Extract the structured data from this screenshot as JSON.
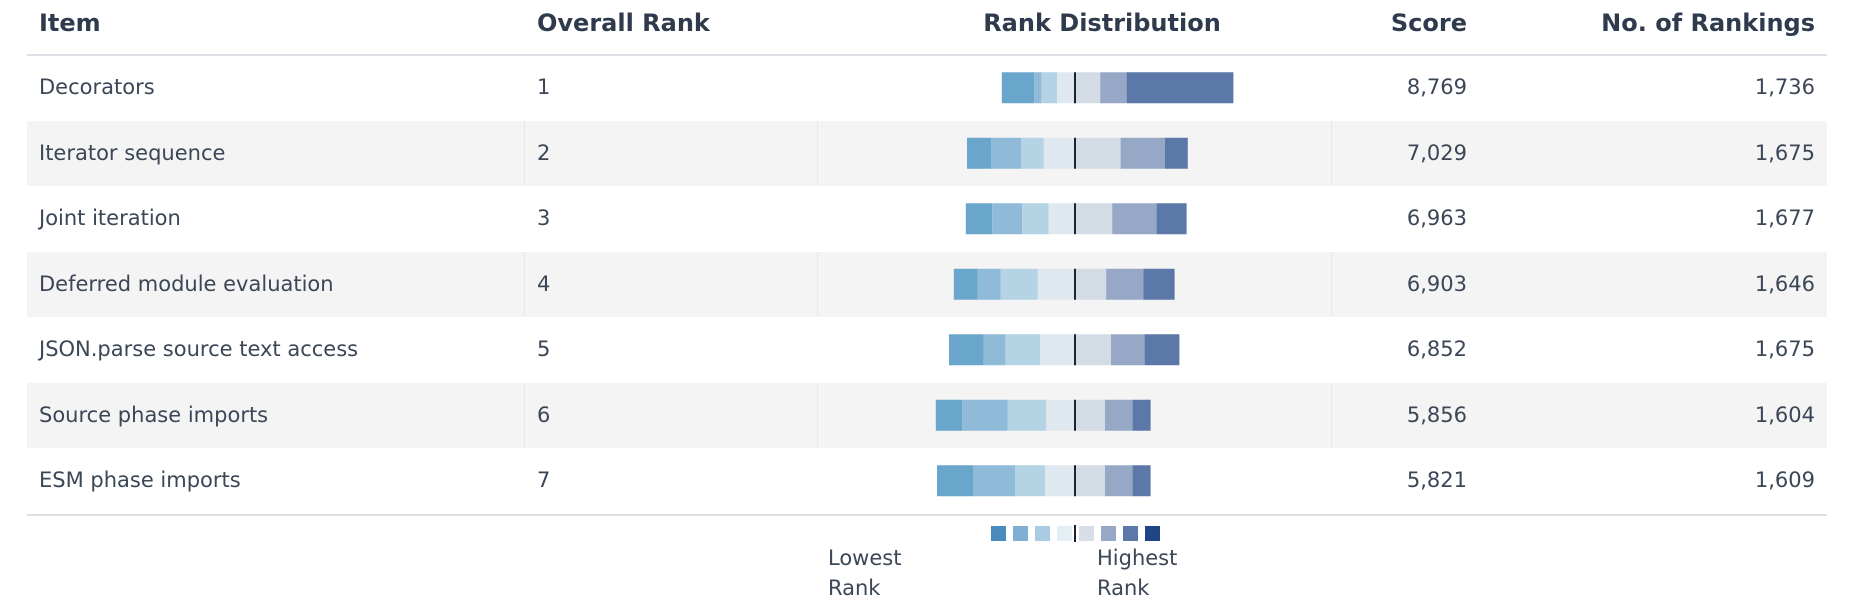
{
  "table": {
    "headers": {
      "item": "Item",
      "overall_rank": "Overall Rank",
      "rank_distribution": "Rank Distribution",
      "score": "Score",
      "rankings": "No. of Rankings"
    },
    "rows": [
      {
        "item": "Decorators",
        "rank": "1",
        "score": "8,769",
        "rankings": "1,736"
      },
      {
        "item": "Iterator sequence",
        "rank": "2",
        "score": "7,029",
        "rankings": "1,675"
      },
      {
        "item": "Joint iteration",
        "rank": "3",
        "score": "6,963",
        "rankings": "1,677"
      },
      {
        "item": "Deferred module evaluation",
        "rank": "4",
        "score": "6,903",
        "rankings": "1,646"
      },
      {
        "item": "JSON.parse source text access",
        "rank": "5",
        "score": "6,852",
        "rankings": "1,675"
      },
      {
        "item": "Source phase imports",
        "rank": "6",
        "score": "5,856",
        "rankings": "1,604"
      },
      {
        "item": "ESM phase imports",
        "rank": "7",
        "score": "5,821",
        "rankings": "1,609"
      }
    ]
  },
  "legend": {
    "low_label": "Lowest Rank",
    "high_label": "Highest Rank",
    "colors": [
      "#4a8bbf",
      "#7fb0d3",
      "#a9cce3",
      "#e4eef4",
      "#d8dee8",
      "#97a8c6",
      "#5c78a8",
      "#1f4586"
    ]
  },
  "chart_data": {
    "type": "bar",
    "subtype": "diverging-stacked-bar",
    "title": "Rank Distribution",
    "categories": [
      "Decorators",
      "Iterator sequence",
      "Joint iteration",
      "Deferred module evaluation",
      "JSON.parse source text access",
      "Source phase imports",
      "ESM phase imports"
    ],
    "segment_colors": [
      "#6aa5cc",
      "#8fbad8",
      "#b4d3e5",
      "#dfe8ef",
      "#d3dbe5",
      "#97a8c6",
      "#5c78a8",
      "#1f4586"
    ],
    "series": [
      {
        "values_left": [
          5.4,
          1.2,
          2.6,
          3.0
        ],
        "values_right": [
          4.2,
          4.4,
          17.8,
          0
        ]
      },
      {
        "values_left": [
          4.0,
          5.0,
          3.8,
          5.2
        ],
        "values_right": [
          7.6,
          7.4,
          3.8,
          0
        ]
      },
      {
        "values_left": [
          4.4,
          5.0,
          4.4,
          4.4
        ],
        "values_right": [
          6.2,
          7.4,
          5.0,
          0
        ]
      },
      {
        "values_left": [
          4.0,
          3.8,
          6.2,
          6.2
        ],
        "values_right": [
          5.2,
          6.2,
          5.2,
          0
        ]
      },
      {
        "values_left": [
          5.8,
          3.6,
          5.8,
          5.8
        ],
        "values_right": [
          6.0,
          5.6,
          5.8,
          0
        ]
      },
      {
        "values_left": [
          4.4,
          7.6,
          6.4,
          4.8
        ],
        "values_right": [
          5.0,
          4.6,
          3.0,
          0
        ]
      },
      {
        "values_left": [
          6.0,
          7.0,
          5.0,
          5.0
        ],
        "values_right": [
          5.0,
          4.6,
          3.0,
          0
        ]
      }
    ],
    "center_line": true
  }
}
